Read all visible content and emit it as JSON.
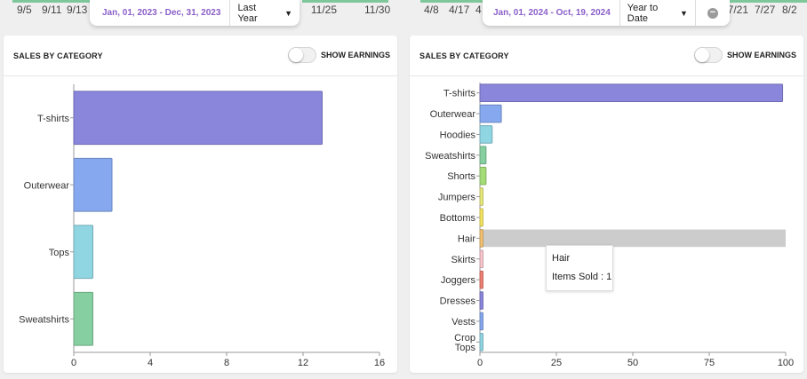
{
  "top_left": {
    "ticks": [
      "9/5",
      "9/11",
      "9/13",
      "11/25",
      "11/30"
    ],
    "date_range": "Jan, 01, 2023 - Dec, 31, 2023",
    "period": "Last Year"
  },
  "top_right": {
    "ticks": [
      "4/8",
      "4/17",
      "4",
      "7/21",
      "7/27",
      "8/2"
    ],
    "date_range": "Jan, 01, 2024 - Oct, 19, 2024",
    "period": "Year to Date"
  },
  "left_card": {
    "title": "SALES BY CATEGORY",
    "toggle_label": "SHOW EARNINGS",
    "toggle_on": false
  },
  "right_card": {
    "title": "SALES BY CATEGORY",
    "toggle_label": "SHOW EARNINGS",
    "toggle_on": false
  },
  "tooltip": {
    "title": "Hair",
    "text": "Items Sold : 1"
  },
  "chart_data": [
    {
      "type": "bar",
      "orientation": "horizontal",
      "categories": [
        "T-shirts",
        "Outerwear",
        "Tops",
        "Sweatshirts"
      ],
      "values": [
        13,
        2,
        1,
        1
      ],
      "colors": [
        "#8a86dc",
        "#86a8ef",
        "#8fd5e2",
        "#86cfa0"
      ],
      "xlim": [
        0,
        16
      ],
      "xticks": [
        0,
        4,
        8,
        12,
        16
      ]
    },
    {
      "type": "bar",
      "orientation": "horizontal",
      "categories": [
        "T-shirts",
        "Outerwear",
        "Hoodies",
        "Sweatshirts",
        "Shorts",
        "Jumpers",
        "Bottoms",
        "Hair",
        "Skirts",
        "Joggers",
        "Dresses",
        "Vests",
        "Crop Tops"
      ],
      "values": [
        99,
        7,
        4,
        2,
        2,
        1,
        1,
        1,
        1,
        1,
        1,
        1,
        1
      ],
      "colors": [
        "#8a86dc",
        "#86a8ef",
        "#8fd5e2",
        "#86cfa0",
        "#a4dd78",
        "#e6e87a",
        "#f4e45f",
        "#f5c171",
        "#f9c4cc",
        "#ee7f72",
        "#8a86dc",
        "#86a8ef",
        "#8fd5e2"
      ],
      "highlighted": "Hair",
      "highlight_color": "#cccccc",
      "xlim": [
        0,
        100
      ],
      "xticks": [
        0,
        25,
        50,
        75,
        100
      ]
    }
  ]
}
